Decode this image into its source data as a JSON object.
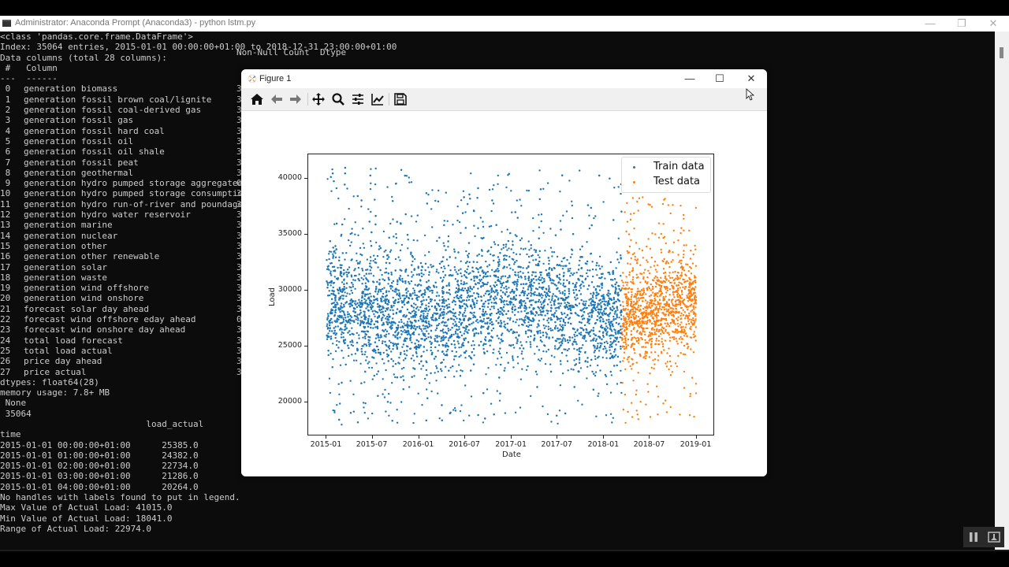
{
  "console": {
    "title": "Administrator: Anaconda Prompt (Anaconda3) - python  lstm.py",
    "controls": {
      "minimize": "—",
      "restore": "❐",
      "close": "✕"
    },
    "header_lines": [
      "<class 'pandas.core.frame.DataFrame'>",
      "Index: 35064 entries, 2015-01-01 00:00:00+01:00 to 2018-12-31 23:00:00+01:00",
      "Data columns (total 28 columns):",
      " #   Column",
      "---  ------"
    ],
    "info_header_right": "Non-Null Count  Dtype",
    "info_header_right_sep": "-",
    "columns": [
      {
        "idx": " 0",
        "name": "generation biomass",
        "count_prefix": "3"
      },
      {
        "idx": " 1",
        "name": "generation fossil brown coal/lignite",
        "count_prefix": "3"
      },
      {
        "idx": " 2",
        "name": "generation fossil coal-derived gas",
        "count_prefix": "3"
      },
      {
        "idx": " 3",
        "name": "generation fossil gas",
        "count_prefix": "3"
      },
      {
        "idx": " 4",
        "name": "generation fossil hard coal",
        "count_prefix": "3"
      },
      {
        "idx": " 5",
        "name": "generation fossil oil",
        "count_prefix": "3"
      },
      {
        "idx": " 6",
        "name": "generation fossil oil shale",
        "count_prefix": "3"
      },
      {
        "idx": " 7",
        "name": "generation fossil peat",
        "count_prefix": "3"
      },
      {
        "idx": " 8",
        "name": "generation geothermal",
        "count_prefix": "3"
      },
      {
        "idx": " 9",
        "name": "generation hydro pumped storage aggregated",
        "count_prefix": "0"
      },
      {
        "idx": "10",
        "name": "generation hydro pumped storage consumption",
        "count_prefix": "3"
      },
      {
        "idx": "11",
        "name": "generation hydro run-of-river and poundage",
        "count_prefix": "3"
      },
      {
        "idx": "12",
        "name": "generation hydro water reservoir",
        "count_prefix": "3"
      },
      {
        "idx": "13",
        "name": "generation marine",
        "count_prefix": "3"
      },
      {
        "idx": "14",
        "name": "generation nuclear",
        "count_prefix": "3"
      },
      {
        "idx": "15",
        "name": "generation other",
        "count_prefix": "3"
      },
      {
        "idx": "16",
        "name": "generation other renewable",
        "count_prefix": "3"
      },
      {
        "idx": "17",
        "name": "generation solar",
        "count_prefix": "3"
      },
      {
        "idx": "18",
        "name": "generation waste",
        "count_prefix": "3"
      },
      {
        "idx": "19",
        "name": "generation wind offshore",
        "count_prefix": "3"
      },
      {
        "idx": "20",
        "name": "generation wind onshore",
        "count_prefix": "3"
      },
      {
        "idx": "21",
        "name": "forecast solar day ahead",
        "count_prefix": "3"
      },
      {
        "idx": "22",
        "name": "forecast wind offshore eday ahead",
        "count_prefix": "0"
      },
      {
        "idx": "23",
        "name": "forecast wind onshore day ahead",
        "count_prefix": "3"
      },
      {
        "idx": "24",
        "name": "total load forecast",
        "count_prefix": "3"
      },
      {
        "idx": "25",
        "name": "total load actual",
        "count_prefix": "3"
      },
      {
        "idx": "26",
        "name": "price day ahead",
        "count_prefix": "3"
      },
      {
        "idx": "27",
        "name": "price actual",
        "count_prefix": "3"
      }
    ],
    "footer_lines": [
      "dtypes: float64(28)",
      "memory usage: 7.8+ MB",
      " None",
      " 35064",
      "                            load_actual",
      "time",
      "2015-01-01 00:00:00+01:00      25385.0",
      "2015-01-01 01:00:00+01:00      24382.0",
      "2015-01-01 02:00:00+01:00      22734.0",
      "2015-01-01 03:00:00+01:00      21286.0",
      "2015-01-01 04:00:00+01:00      20264.0",
      "No handles with labels found to put in legend.",
      "Max Value of Actual Load: 41015.0",
      "Min Value of Actual Load: 18041.0",
      "Range of Actual Load: 22974.0"
    ]
  },
  "figure": {
    "title": "Figure 1",
    "controls": {
      "minimize": "—",
      "maximize": "☐",
      "close": "✕"
    },
    "toolbar": [
      {
        "name": "home",
        "label": "Home"
      },
      {
        "name": "back",
        "label": "Back"
      },
      {
        "name": "forward",
        "label": "Forward"
      },
      {
        "name": "pan",
        "label": "Pan"
      },
      {
        "name": "zoom",
        "label": "Zoom"
      },
      {
        "name": "subplots",
        "label": "Configure subplots"
      },
      {
        "name": "customize",
        "label": "Edit axis"
      },
      {
        "name": "save",
        "label": "Save"
      }
    ]
  },
  "chart_data": {
    "type": "scatter",
    "title": "",
    "xlabel": "Date",
    "ylabel": "Load",
    "ylim": [
      17000,
      42200
    ],
    "xlim": [
      "2014-10-20",
      "2019-03-15"
    ],
    "yticks": [
      20000,
      25000,
      30000,
      35000,
      40000
    ],
    "xticks": [
      "2015-01",
      "2015-07",
      "2016-01",
      "2016-07",
      "2017-01",
      "2017-07",
      "2018-01",
      "2018-07",
      "2019-01"
    ],
    "legend_position": "upper right",
    "grid": false,
    "series": [
      {
        "name": "Train data",
        "color": "#1f77b4",
        "x_range": [
          "2015-01-01",
          "2018-03-12"
        ],
        "points": 28051,
        "y_min": 18041,
        "y_max": 41015,
        "typical_band": [
          21000,
          36000
        ]
      },
      {
        "name": "Test data",
        "color": "#ff7f0e",
        "x_range": [
          "2018-03-12",
          "2018-12-31"
        ],
        "points": 7013,
        "y_min": 18200,
        "y_max": 39600,
        "typical_band": [
          22000,
          35000
        ]
      }
    ],
    "summary": {
      "max": 41015.0,
      "min": 18041.0,
      "range": 22974.0,
      "entries": 35064
    }
  },
  "player": {
    "pause_label": "Pause",
    "pip_label": "Picture in picture"
  }
}
